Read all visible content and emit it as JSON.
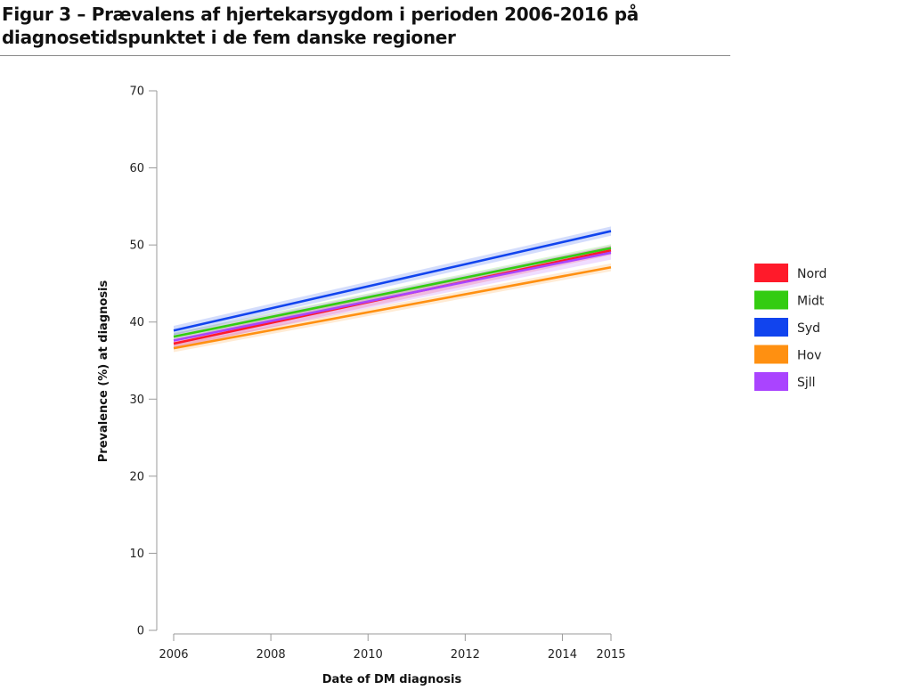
{
  "title": {
    "line1": "Figur 3 – Prævalens af hjertekarsygdom i perioden 2006-2016 på",
    "line2": "diagnosetidspunktet i de fem danske regioner"
  },
  "chart_data": {
    "type": "line",
    "title": "Figur 3 – Prævalens af hjertekarsygdom i perioden 2006-2016 på diagnosetidspunktet i de fem danske regioner",
    "xlabel": "Date of DM diagnosis",
    "ylabel": "Prevalence (%) at diagnosis",
    "xlim": [
      2006,
      2015
    ],
    "ylim": [
      0,
      70
    ],
    "x_ticks": [
      "2006",
      "2008",
      "2010",
      "2012",
      "2014",
      "2015"
    ],
    "y_ticks": [
      "0",
      "10",
      "20",
      "30",
      "40",
      "50",
      "60",
      "70"
    ],
    "grid": false,
    "legend_position": "right",
    "series": [
      {
        "name": "Nord",
        "color": "#ff1a2a",
        "x": [
          2006,
          2015
        ],
        "y": [
          37.2,
          49.3
        ],
        "band": 0.6
      },
      {
        "name": "Midt",
        "color": "#33cc11",
        "x": [
          2006,
          2015
        ],
        "y": [
          38.1,
          49.6
        ],
        "band": 0.5
      },
      {
        "name": "Syd",
        "color": "#1144ee",
        "x": [
          2006,
          2015
        ],
        "y": [
          38.9,
          51.8
        ],
        "band": 0.6
      },
      {
        "name": "Hov",
        "color": "#ff9011",
        "x": [
          2006,
          2015
        ],
        "y": [
          36.6,
          47.1
        ],
        "band": 0.5
      },
      {
        "name": "Sjll",
        "color": "#aa44ff",
        "x": [
          2006,
          2015
        ],
        "y": [
          37.6,
          49.0
        ],
        "band": 0.9
      }
    ]
  }
}
